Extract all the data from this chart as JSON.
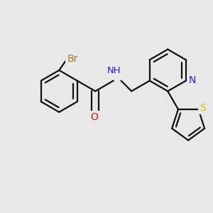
{
  "background_color": "#e8e8e8",
  "bond_color": "#111111",
  "line_width": 1.6,
  "atom_colors": {
    "Br": "#b8732a",
    "O": "#ee1111",
    "N": "#2222ee",
    "S": "#cccc00"
  },
  "font_size": 9.5,
  "fig_width": 3.0,
  "fig_height": 3.0,
  "dpi": 100,
  "xlim": [
    0,
    3.0
  ],
  "ylim": [
    0,
    3.0
  ],
  "bl": 0.3
}
